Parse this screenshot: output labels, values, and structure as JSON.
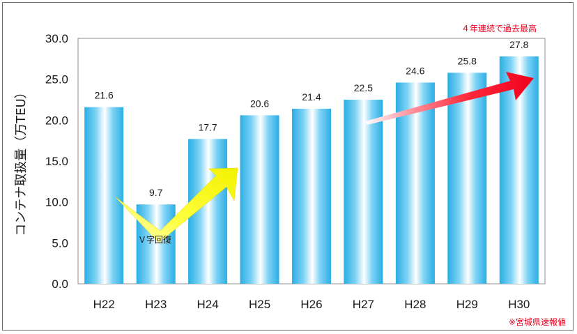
{
  "chart_data": {
    "type": "bar",
    "title": "",
    "xlabel": "",
    "ylabel": "コンテナ取扱量（万TEU）",
    "categories": [
      "H22",
      "H23",
      "H24",
      "H25",
      "H26",
      "H27",
      "H28",
      "H29",
      "H30"
    ],
    "values": [
      21.6,
      9.7,
      17.7,
      20.6,
      21.4,
      22.5,
      24.6,
      25.8,
      27.8
    ],
    "value_labels": [
      "21.6",
      "9.7",
      "17.7",
      "20.6",
      "21.4",
      "22.5",
      "24.6",
      "25.8",
      "27.8"
    ],
    "ylim": [
      0,
      30
    ],
    "yticks": [
      "0.0",
      "5.0",
      "10.0",
      "15.0",
      "20.0",
      "25.0",
      "30.0"
    ],
    "grid": false,
    "highlight_category": "H30",
    "highlight_color": "#e8001c",
    "bar_color": "#33b8ea",
    "annotations": {
      "recovery": "Ｖ字回復",
      "record": "４年連続で過去最高",
      "note": "※宮城県速報値"
    },
    "arrow_colors": {
      "recovery": "#ffff00",
      "record": "#ff1a2e"
    }
  }
}
